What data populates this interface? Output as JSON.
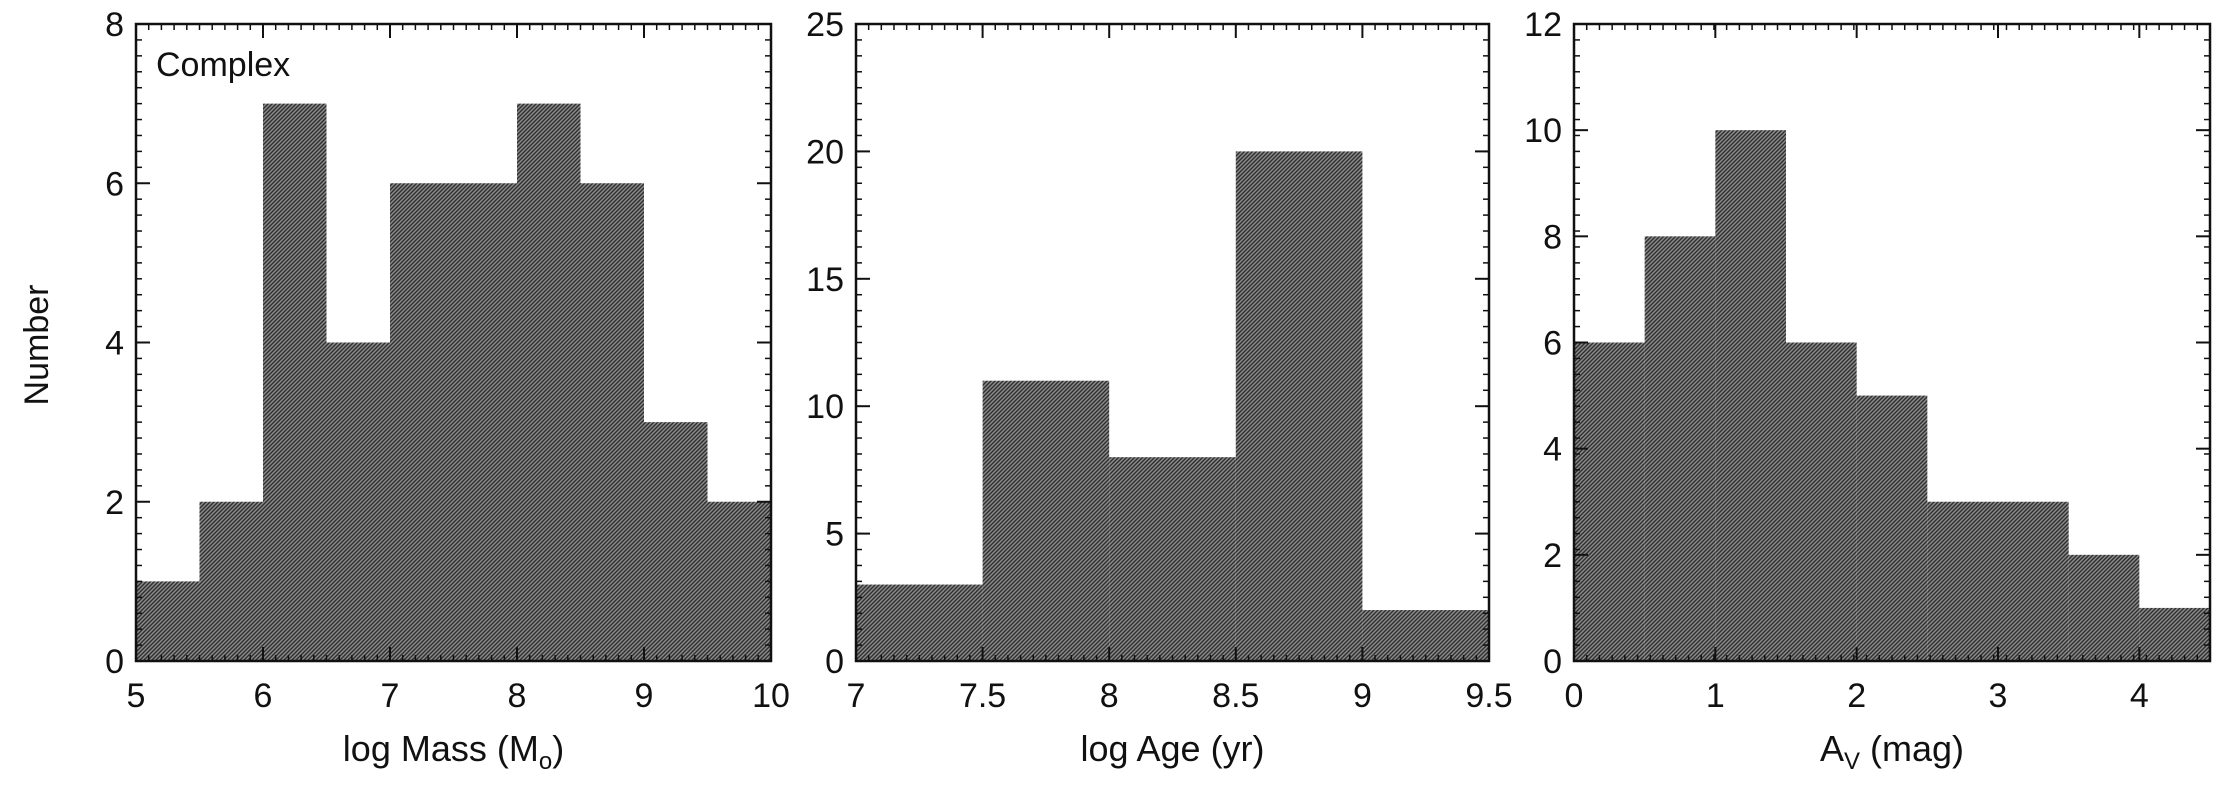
{
  "figure": {
    "ylabel": "Number"
  },
  "chart_data": [
    {
      "type": "bar",
      "annotation": "Complex",
      "xlabel": "log Mass (M",
      "xlabel_sub": "o",
      "xlabel_end": ")",
      "xlim": [
        5,
        10
      ],
      "ylim": [
        0,
        8
      ],
      "xticks": [
        "5",
        "6",
        "7",
        "8",
        "9",
        "10"
      ],
      "yticks": [
        "0",
        "2",
        "4",
        "6",
        "8"
      ],
      "bin_edges": [
        5,
        5.5,
        6,
        6.5,
        7,
        7.5,
        8,
        8.5,
        9,
        9.5,
        10
      ],
      "values": [
        1,
        2,
        7,
        4,
        6,
        6,
        7,
        6,
        3,
        2
      ],
      "grid": false
    },
    {
      "type": "bar",
      "xlabel": "log Age (yr)",
      "xlim": [
        7,
        9.5
      ],
      "ylim": [
        0,
        25
      ],
      "xticks": [
        "7",
        "7.5",
        "8",
        "8.5",
        "9",
        "9.5"
      ],
      "yticks": [
        "0",
        "5",
        "10",
        "15",
        "20",
        "25"
      ],
      "bin_edges": [
        7,
        7.5,
        8,
        8.5,
        9,
        9.5
      ],
      "values": [
        3,
        11,
        8,
        20,
        2
      ],
      "grid": false
    },
    {
      "type": "bar",
      "xlabel": "A",
      "xlabel_sub": "V",
      "xlabel_end": " (mag)",
      "xlim": [
        0,
        4.5
      ],
      "ylim": [
        0,
        12
      ],
      "xticks": [
        "0",
        "1",
        "2",
        "3",
        "4"
      ],
      "yticks": [
        "0",
        "2",
        "4",
        "6",
        "8",
        "10",
        "12"
      ],
      "bin_edges": [
        0,
        0.5,
        1,
        1.5,
        2,
        2.5,
        3,
        3.5,
        4,
        4.5
      ],
      "values": [
        6,
        8,
        10,
        6,
        5,
        3,
        3,
        2,
        1
      ],
      "grid": false
    }
  ],
  "style": {
    "bar_fill": "#5a5a5a",
    "axis_color": "#111111",
    "background": "#ffffff"
  }
}
